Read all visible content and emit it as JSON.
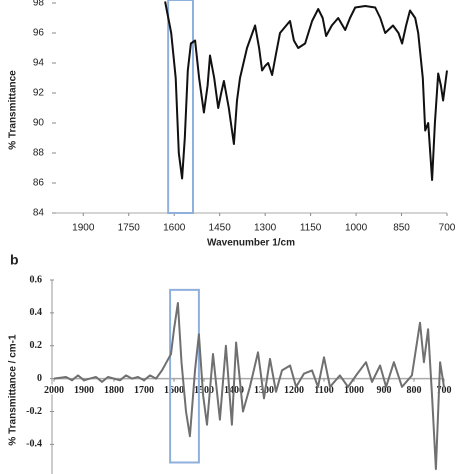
{
  "chart_data": [
    {
      "type": "line",
      "x_label": "Wavenumber 1/cm",
      "y_label": "% Transmittance",
      "xlim": [
        1990,
        700
      ],
      "xticks": [
        1900,
        1750,
        1600,
        1450,
        1300,
        1150,
        1000,
        850,
        700
      ],
      "ylim": [
        84,
        98.2
      ],
      "yticks": [
        84,
        86,
        88,
        90,
        92,
        94,
        96,
        98
      ],
      "highlight": {
        "x": [
          1620,
          1538
        ],
        "color": "#8fb0dc"
      },
      "series": [
        {
          "name": null,
          "color": "#111111",
          "x": [
            1630,
            1610,
            1595,
            1585,
            1574,
            1565,
            1555,
            1545,
            1531,
            1518,
            1502,
            1490,
            1482,
            1468,
            1455,
            1445,
            1436,
            1420,
            1403,
            1393,
            1383,
            1360,
            1333,
            1320,
            1310,
            1300,
            1290,
            1277,
            1265,
            1251,
            1218,
            1205,
            1191,
            1168,
            1145,
            1125,
            1110,
            1099,
            1080,
            1059,
            1036,
            1020,
            1003,
            970,
            937,
            920,
            904,
            878,
            860,
            848,
            835,
            822,
            805,
            795,
            780,
            772,
            762,
            749,
            740,
            729,
            720,
            713,
            700
          ],
          "values": [
            98.1,
            96,
            93,
            88,
            86.3,
            89,
            93.5,
            95.3,
            95.5,
            93,
            90.7,
            92.5,
            94.5,
            93,
            91,
            92,
            92.8,
            91,
            88.6,
            91.5,
            93,
            95,
            96.5,
            95,
            93.5,
            93.8,
            94,
            93.2,
            94.5,
            96,
            96.8,
            95.5,
            95,
            95.3,
            96.8,
            97.6,
            97,
            95.8,
            96.5,
            97,
            96.2,
            97,
            97.7,
            97.8,
            97.7,
            97,
            96,
            96.5,
            96,
            95.3,
            96.5,
            97.5,
            97,
            96,
            93,
            89.5,
            90,
            86.2,
            90,
            93.3,
            92.5,
            91.5,
            93.5
          ]
        }
      ]
    },
    {
      "type": "line",
      "panel_label": "b",
      "y_label": "% Transmittance / cm-1",
      "xlim": [
        2000,
        700
      ],
      "xticks": [
        2000,
        1900,
        1800,
        1700,
        1600,
        1500,
        1400,
        1300,
        1200,
        1100,
        1000,
        900,
        800,
        700
      ],
      "ylim": [
        -0.58,
        0.6
      ],
      "yticks": [
        0.6,
        0.4,
        0.2,
        0,
        -0.2,
        -0.4
      ],
      "highlight": {
        "x": [
          1613,
          1517
        ],
        "y": [
          0.54,
          -0.51
        ],
        "color": "#8fb0dc"
      },
      "series": [
        {
          "name": null,
          "color": "#707070",
          "x": [
            2000,
            1960,
            1940,
            1920,
            1900,
            1880,
            1860,
            1840,
            1820,
            1800,
            1780,
            1760,
            1740,
            1720,
            1700,
            1680,
            1660,
            1640,
            1625,
            1610,
            1600,
            1587,
            1575,
            1560,
            1547,
            1530,
            1517,
            1503,
            1490,
            1470,
            1447,
            1427,
            1407,
            1393,
            1370,
            1347,
            1320,
            1300,
            1280,
            1260,
            1240,
            1213,
            1193,
            1167,
            1140,
            1120,
            1100,
            1080,
            1047,
            1020,
            993,
            960,
            940,
            913,
            893,
            867,
            840,
            807,
            780,
            767,
            753,
            740,
            727,
            713,
            700
          ],
          "values": [
            0,
            0.01,
            -0.01,
            0.02,
            -0.01,
            0,
            0.01,
            -0.02,
            0.01,
            0,
            -0.01,
            0.02,
            0,
            0.01,
            -0.01,
            0.02,
            0,
            0.05,
            0.1,
            0.15,
            0.3,
            0.46,
            0.1,
            -0.2,
            -0.35,
            0.05,
            0.27,
            -0.1,
            -0.28,
            0.15,
            -0.25,
            0.2,
            -0.28,
            0.22,
            -0.2,
            -0.05,
            0.16,
            -0.12,
            0.12,
            -0.08,
            0.05,
            0.08,
            -0.05,
            0.03,
            0.05,
            -0.05,
            0.13,
            -0.05,
            0.02,
            -0.05,
            0.02,
            0.1,
            -0.02,
            0.08,
            -0.05,
            0.1,
            -0.05,
            0.02,
            0.34,
            0.1,
            0.3,
            -0.1,
            -0.55,
            0.1,
            -0.05
          ]
        }
      ]
    }
  ]
}
